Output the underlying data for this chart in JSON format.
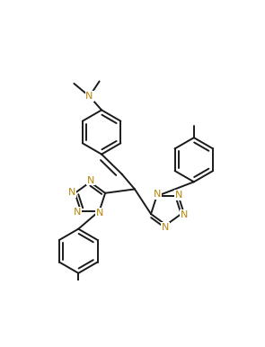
{
  "bg": "#ffffff",
  "bc": "#1a1a1a",
  "nc": "#b8860b",
  "lw": 1.4,
  "fsN": 8.0,
  "fsME": 7.5,
  "xlim": [
    0,
    10
  ],
  "ylim": [
    0,
    13
  ],
  "figsize": [
    2.95,
    3.86
  ],
  "dpi": 100,
  "r6": 1.0,
  "r5": 0.72
}
